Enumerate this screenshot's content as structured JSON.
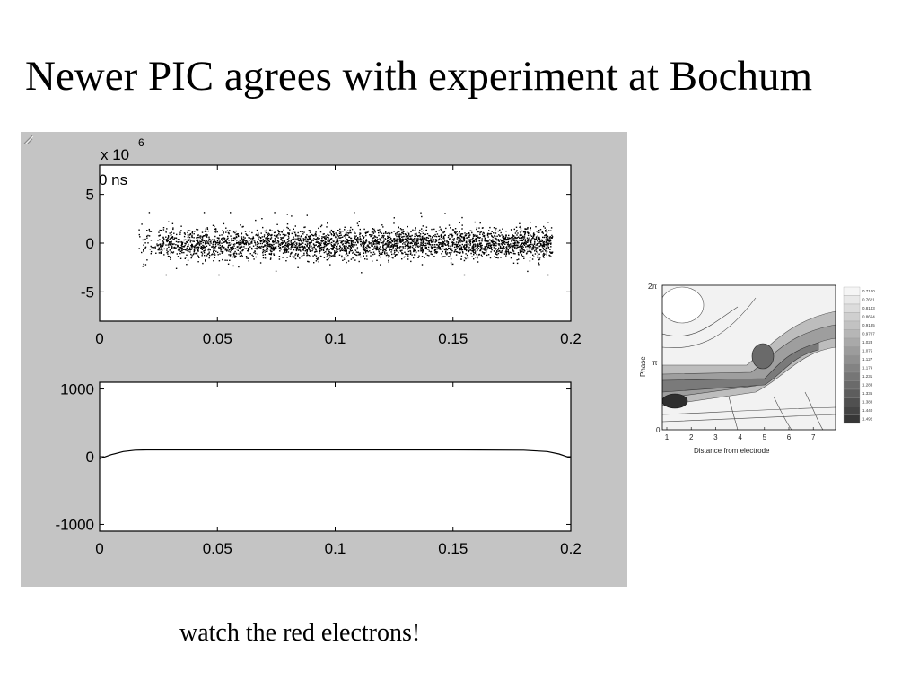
{
  "slide": {
    "title": "Newer PIC agrees with experiment at Bochum",
    "caption": "watch the red electrons!"
  },
  "colors": {
    "panel_background": "#c4c4c4",
    "plot_background": "#ffffff",
    "marker": "#000000"
  },
  "chart_data": [
    {
      "type": "scatter",
      "id": "phase-space",
      "annotation": "0 ns",
      "y_exponent_label": "x 10",
      "y_exponent": "6",
      "xlim": [
        0,
        0.2
      ],
      "ylim": [
        -8,
        8
      ],
      "x_ticks": [
        "0",
        "0.05",
        "0.1",
        "0.15",
        "0.2"
      ],
      "y_ticks": [
        "5",
        "0",
        "-5"
      ],
      "x_range_of_points": [
        0.016,
        0.192
      ],
      "y_spread_approx": [
        -3,
        3
      ],
      "approx_point_count": 3500
    },
    {
      "type": "line",
      "id": "potential",
      "xlim": [
        0,
        0.2
      ],
      "ylim": [
        -1100,
        1100
      ],
      "x_ticks": [
        "0",
        "0.05",
        "0.1",
        "0.15",
        "0.2"
      ],
      "y_ticks": [
        "1000",
        "0",
        "-1000"
      ],
      "series": [
        {
          "x": [
            0,
            0.005,
            0.01,
            0.015,
            0.02,
            0.05,
            0.1,
            0.15,
            0.18,
            0.19,
            0.195,
            0.2
          ],
          "y": [
            -30,
            30,
            75,
            95,
            100,
            100,
            100,
            100,
            95,
            75,
            40,
            -20
          ]
        }
      ]
    },
    {
      "type": "heatmap",
      "id": "contour-map",
      "xlabel": "Distance from electrode",
      "ylabel": "Phase",
      "x_ticks": [
        "1",
        "2",
        "3",
        "4",
        "5",
        "6",
        "7"
      ],
      "y_ticks": [
        "0",
        "π",
        "2π"
      ],
      "legend_labels": [
        "0.7100",
        "0.7621",
        "0.8143",
        "0.8664",
        "0.9185",
        "0.9707",
        "1.023",
        "1.075",
        "1.127",
        "1.179",
        "1.231",
        "1.283",
        "1.336",
        "1.388",
        "1.440",
        "1.492"
      ]
    }
  ]
}
